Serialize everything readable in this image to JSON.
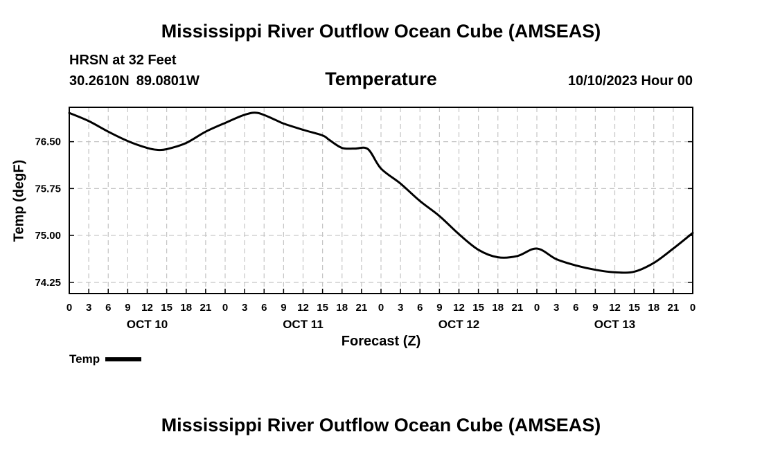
{
  "header": {
    "title": "Mississippi River Outflow Ocean Cube (AMSEAS)",
    "station": "HRSN at 32 Feet",
    "latitude": "30.2610N",
    "longitude": "89.0801W",
    "subtitle": "Temperature",
    "datetime": "10/10/2023 Hour 00"
  },
  "footer": {
    "title": "Mississippi River Outflow Ocean Cube (AMSEAS)"
  },
  "legend": {
    "label": "Temp"
  },
  "chart_data": {
    "type": "line",
    "title": "Temperature",
    "xlabel": "Forecast (Z)",
    "ylabel": "Temp (degF)",
    "xlim": [
      0,
      96
    ],
    "ylim": [
      74.07,
      77.05
    ],
    "yticks": [
      74.25,
      75.0,
      75.75,
      76.5
    ],
    "ytick_labels": [
      "74.25",
      "75.00",
      "75.75",
      "76.50"
    ],
    "xticks": [
      0,
      3,
      6,
      9,
      12,
      15,
      18,
      21,
      24,
      27,
      30,
      33,
      36,
      39,
      42,
      45,
      48,
      51,
      54,
      57,
      60,
      63,
      66,
      69,
      72,
      75,
      78,
      81,
      84,
      87,
      90,
      93,
      96
    ],
    "xtick_labels": [
      "0",
      "3",
      "6",
      "9",
      "12",
      "15",
      "18",
      "21",
      "0",
      "3",
      "6",
      "9",
      "12",
      "15",
      "18",
      "21",
      "0",
      "3",
      "6",
      "9",
      "12",
      "15",
      "18",
      "21",
      "0",
      "3",
      "6",
      "9",
      "12",
      "15",
      "18",
      "21",
      "0"
    ],
    "day_labels": [
      {
        "label": "OCT 10",
        "x": 12
      },
      {
        "label": "OCT 11",
        "x": 36
      },
      {
        "label": "OCT 12",
        "x": 60
      },
      {
        "label": "OCT 13",
        "x": 84
      }
    ],
    "grid": true,
    "series": [
      {
        "name": "Temp",
        "x": [
          0,
          3,
          6,
          9,
          12,
          13.5,
          15,
          18,
          21,
          24,
          27,
          29,
          31.5,
          33,
          36,
          39,
          40,
          42,
          44,
          46,
          48,
          51,
          54,
          57,
          60,
          63,
          66,
          69,
          72,
          75,
          78,
          81,
          84,
          87,
          90,
          93,
          96
        ],
        "y": [
          76.96,
          76.83,
          76.66,
          76.51,
          76.4,
          76.37,
          76.38,
          76.48,
          76.66,
          76.8,
          76.93,
          76.96,
          76.86,
          76.79,
          76.69,
          76.6,
          76.53,
          76.4,
          76.39,
          76.38,
          76.07,
          75.83,
          75.55,
          75.31,
          75.02,
          74.77,
          74.65,
          74.67,
          74.79,
          74.62,
          74.52,
          74.45,
          74.41,
          74.42,
          74.56,
          74.79,
          75.04
        ]
      }
    ]
  }
}
